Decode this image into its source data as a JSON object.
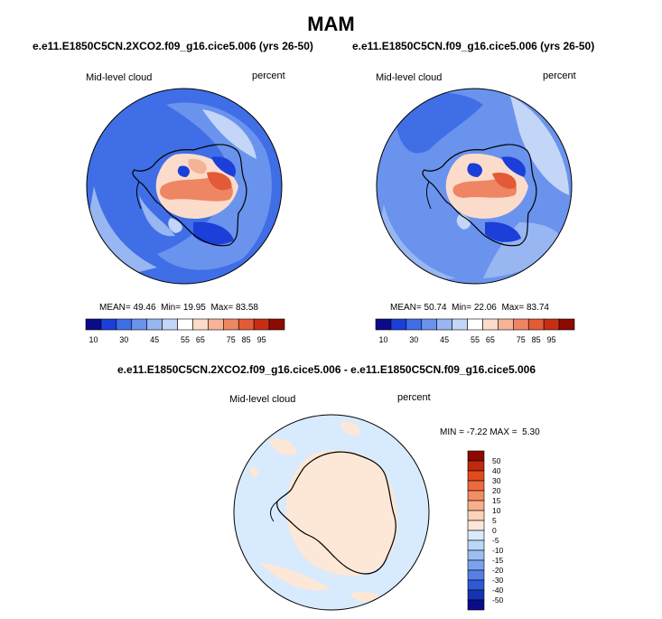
{
  "page": {
    "season": "MAM"
  },
  "panels": {
    "left": {
      "title": "e.e11.E1850C5CN.2XCO2.f09_g16.cice5.006 (yrs 26-50)",
      "variable": "Mid-level cloud",
      "units": "percent",
      "stats": {
        "mean_label": "MEAN=",
        "mean": "49.46",
        "min_label": "Min=",
        "min": "19.95",
        "max_label": "Max=",
        "max": "83.58"
      }
    },
    "right": {
      "title": "e.e11.E1850C5CN.f09_g16.cice5.006 (yrs 26-50)",
      "variable": "Mid-level cloud",
      "units": "percent",
      "stats": {
        "mean_label": "MEAN=",
        "mean": "50.74",
        "min_label": "Min=",
        "min": "22.06",
        "max_label": "Max=",
        "max": "83.74"
      }
    },
    "diff": {
      "title": "e.e11.E1850C5CN.2XCO2.f09_g16.cice5.006 - e.e11.E1850C5CN.f09_g16.cice5.006",
      "variable": "Mid-level cloud",
      "units": "percent",
      "stats": {
        "min_label": "MIN =",
        "min": "-7.22",
        "max_label": "MAX =",
        "max": "5.30"
      }
    }
  },
  "colorbar_main": {
    "colors": [
      "#0b0b8a",
      "#1b3fd8",
      "#3f6ee6",
      "#6a93ee",
      "#97b6f2",
      "#c3d6f7",
      "#ffffff",
      "#fbdccb",
      "#f5b398",
      "#ee8563",
      "#e35a36",
      "#c82d13",
      "#8c0a00"
    ],
    "labels": [
      "10",
      "30",
      "45",
      "55",
      "65",
      "75",
      "85",
      "95"
    ]
  },
  "colorbar_diff": {
    "colors": [
      "#8c0a00",
      "#c02810",
      "#e34a1e",
      "#ee6a3c",
      "#f48d62",
      "#f8af8a",
      "#fcd3b8",
      "#fde7d6",
      "#d8eafd",
      "#bdd6f7",
      "#9dbef2",
      "#7ba3ed",
      "#557fe6",
      "#2e5ad7",
      "#1434b5",
      "#0b0b8a"
    ],
    "labels": [
      "50",
      "40",
      "30",
      "20",
      "15",
      "10",
      "5",
      "0",
      "-5",
      "-10",
      "-15",
      "-20",
      "-30",
      "-40",
      "-50"
    ]
  }
}
